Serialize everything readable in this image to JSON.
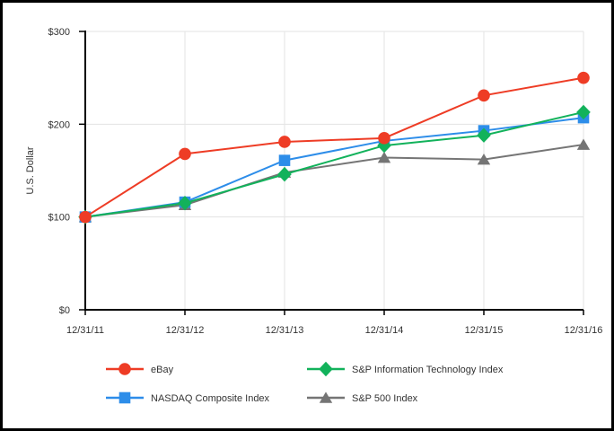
{
  "figure": {
    "description": "Comparison of cumulative total return line chart",
    "background_color": "#ffffff",
    "frame_border_color": "#000000"
  },
  "chart_data": {
    "type": "line",
    "title": "",
    "xlabel": "",
    "ylabel": "U.S. Dollar",
    "ylim": [
      0,
      300
    ],
    "ytick_values": [
      0,
      100,
      200,
      300
    ],
    "ytick_labels": [
      "$0",
      "$100",
      "$200",
      "$300"
    ],
    "grid": true,
    "legend_position": "bottom",
    "categories": [
      "12/31/11",
      "12/31/12",
      "12/31/13",
      "12/31/14",
      "12/31/15",
      "12/31/16"
    ],
    "series": [
      {
        "name": "eBay",
        "marker": "circle",
        "color": "#ee3c25",
        "values": [
          100,
          168,
          181,
          185,
          231,
          250
        ]
      },
      {
        "name": "NASDAQ Composite Index",
        "marker": "square",
        "color": "#2d8de9",
        "values": [
          100,
          116,
          161,
          182,
          193,
          207
        ]
      },
      {
        "name": "S&P Information Technology Index",
        "marker": "diamond",
        "color": "#12b25b",
        "values": [
          100,
          115,
          146,
          177,
          188,
          213
        ]
      },
      {
        "name": "S&P 500 Index",
        "marker": "triangle",
        "color": "#757575",
        "values": [
          100,
          113,
          148,
          164,
          162,
          178
        ]
      }
    ],
    "draw_order_bottom_to_top": [
      "S&P 500 Index",
      "NASDAQ Composite Index",
      "S&P Information Technology Index",
      "eBay"
    ],
    "legend_grid_rows": [
      [
        "eBay",
        "S&P Information Technology Index"
      ],
      [
        "NASDAQ Composite Index",
        "S&P 500 Index"
      ]
    ],
    "colors": {
      "axis": "#000000",
      "gridline": "#e3e3e3",
      "text": "#333333"
    }
  }
}
